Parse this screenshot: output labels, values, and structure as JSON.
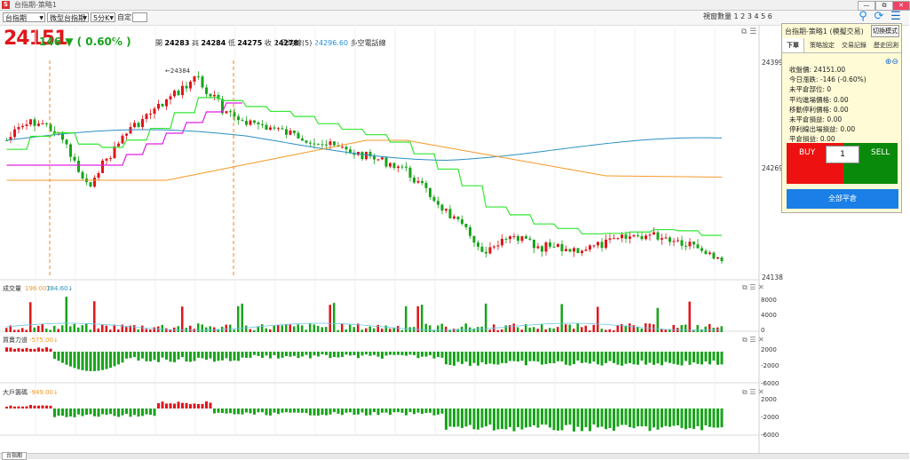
{
  "window": {
    "title": "台指期-策略1",
    "app_icon": "S",
    "controls": [
      "—",
      "⧉",
      "✕"
    ]
  },
  "toolbar": {
    "symbol": "台指期",
    "contract": "微型台指期",
    "interval": "5分K",
    "custom_label": "自定:",
    "view_count_label": "視窗數量",
    "view_counts": "1 2 3 4 5 6"
  },
  "icons": {
    "bulb": "lightbulb-icon",
    "refresh": "refresh-icon",
    "user_list": "user-list-icon",
    "pane_tools": [
      "layout-icon",
      "list-icon",
      "close-icon"
    ]
  },
  "quote": {
    "price": "24151",
    "change": "146 ▼ ( 0.60% )",
    "open_label": "開",
    "open": "24283",
    "high_label": "高",
    "high": "24284",
    "low_label": "低",
    "low": "24275",
    "close_label": "收",
    "close": "24278",
    "ma_label": "日均線(5)",
    "ma_value": "24296.60",
    "ma_state": "多空電話線",
    "peak_note": "←24384"
  },
  "colors": {
    "up": "#e0161b",
    "down": "#18a41b",
    "ma_blue": "#2a8fc2",
    "ma_orange": "#f59a2a",
    "line_green": "#33e633",
    "line_magenta": "#e020e0",
    "marker_orange": "#f08a20"
  },
  "price_axis": {
    "high": "24399",
    "mid": "24269",
    "low": "24138"
  },
  "volume_pane": {
    "title": "成交量",
    "value1": "196.00↑",
    "value2": "184.60↓",
    "axis": [
      "8000",
      "4000",
      "0"
    ]
  },
  "force_pane": {
    "title": "買賣力道",
    "value": "-575.00↓",
    "axis": [
      "2000",
      "-2000",
      "-6000"
    ]
  },
  "large_pane": {
    "title": "大戶籌碼",
    "value": "-949.00↓",
    "axis": [
      "2000",
      "-2000",
      "-6000"
    ]
  },
  "panel": {
    "title": "台指期-策略1 (模擬交易)",
    "mode_button": "切換模式",
    "tabs": [
      "下單",
      "策略設定",
      "交易記錄",
      "歷史回測"
    ],
    "info": [
      "收盤價: 24151.00",
      "今日漲跌: -146 (-0.60%)",
      "未平倉部位: 0",
      "平均進場價格: 0.00",
      "移動停利價格: 0.00",
      "未平倉損益: 0.00",
      "停利線出場損益: 0.00",
      "平倉損益: 0.00"
    ],
    "buy_label": "BUY",
    "sell_label": "SELL",
    "quantity": "1",
    "close_all": "全部平倉"
  },
  "status": {
    "tab": "台指期"
  }
}
